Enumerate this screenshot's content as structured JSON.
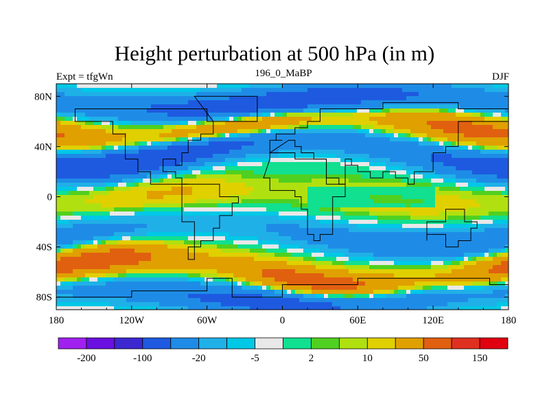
{
  "chart_data": {
    "type": "heatmap",
    "title": "Height perturbation at 500 hPa (in m)",
    "left_label": "Expt = tfgWn",
    "center_label": "196_0_MaBP",
    "right_label": "DJF",
    "x_ticks": [
      "180",
      "120W",
      "60W",
      "0",
      "60E",
      "120E",
      "180"
    ],
    "y_ticks": [
      "80N",
      "40N",
      "0",
      "40S",
      "80S"
    ],
    "x_range": [
      -180,
      180
    ],
    "y_range": [
      -90,
      90
    ],
    "colorbar": {
      "colors": [
        "#a020f0",
        "#6a10e0",
        "#3c28d0",
        "#1e5ae0",
        "#1e8ce6",
        "#20b0e8",
        "#00c8e6",
        "#e8e8e8",
        "#10e090",
        "#50d020",
        "#b0e010",
        "#e0d000",
        "#e0a000",
        "#e06010",
        "#e03020",
        "#e00010"
      ],
      "tick_labels": [
        "-200",
        "-100",
        "-20",
        "-5",
        "2",
        "10",
        "50",
        "150"
      ]
    },
    "field": {
      "description": "500 hPa geopotential height perturbation (m); bands alternate negative (blue) and positive (yellow/orange).",
      "wave_structure": [
        {
          "lat": 75,
          "sign": "negative",
          "amplitude": 80
        },
        {
          "lat": 55,
          "sign": "positive",
          "amplitude": 60
        },
        {
          "lat": 35,
          "sign": "negative",
          "amplitude": 90
        },
        {
          "lat": 0,
          "sign": "positive",
          "amplitude": 20
        },
        {
          "lat": -30,
          "sign": "negative",
          "amplitude": 40
        },
        {
          "lat": -60,
          "sign": "positive",
          "amplitude": 70
        },
        {
          "lat": -80,
          "sign": "negative",
          "amplitude": 60
        }
      ]
    }
  }
}
